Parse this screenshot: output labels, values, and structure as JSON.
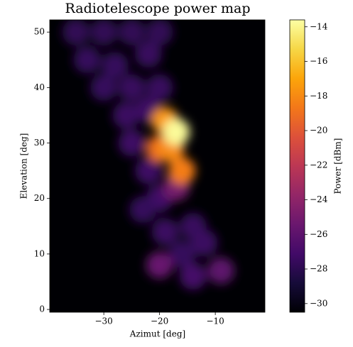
{
  "chart_data": {
    "type": "heatmap-blobs",
    "title": "Radiotelescope power map",
    "x_label": "Azimut [deg]",
    "y_label": "Elevation [deg]",
    "colorbar_label": "Power [dBm]",
    "colormap": "inferno",
    "x": [
      -35,
      -30,
      -25,
      -20,
      -33,
      -28,
      -22,
      -30,
      -25,
      -20,
      -26,
      -22,
      -25,
      -22,
      -20,
      -23,
      -14,
      -19,
      -16,
      -12,
      -14,
      -9,
      -20,
      -17,
      -16,
      -20,
      -18,
      -19,
      -17
    ],
    "y": [
      50,
      50,
      50,
      50,
      45,
      44,
      46,
      40,
      40,
      40,
      35,
      36,
      30,
      25,
      20,
      18,
      15,
      14,
      10,
      12,
      6,
      7,
      8,
      22,
      25,
      29,
      29,
      34,
      32
    ],
    "values": [
      -27.8,
      -27.8,
      -27.8,
      -27.8,
      -27.6,
      -27.6,
      -27.5,
      -27.6,
      -27.5,
      -27.5,
      -27.4,
      -27.3,
      -27.3,
      -27.3,
      -27.2,
      -27.6,
      -27.5,
      -27.4,
      -27.6,
      -27.4,
      -27,
      -26,
      -25.5,
      -25,
      -18.5,
      -19,
      -18,
      -17.5,
      -13.8
    ],
    "xlim": [
      -39.7,
      -1.1
    ],
    "ylim": [
      -0.5,
      52.2
    ],
    "clim": [
      -30.5,
      -13.6
    ],
    "xticks": [
      {
        "value": -30,
        "label": "−30"
      },
      {
        "value": -20,
        "label": "−20"
      },
      {
        "value": -10,
        "label": "−10"
      }
    ],
    "yticks": [
      0,
      10,
      20,
      30,
      40,
      50
    ],
    "cticks": [
      {
        "value": -30,
        "label": "−30"
      },
      {
        "value": -28,
        "label": "−28"
      },
      {
        "value": -26,
        "label": "−26"
      },
      {
        "value": -24,
        "label": "−24"
      },
      {
        "value": -22,
        "label": "−22"
      },
      {
        "value": -20,
        "label": "−20"
      },
      {
        "value": -18,
        "label": "−18"
      },
      {
        "value": -16,
        "label": "−16"
      },
      {
        "value": -14,
        "label": "−14"
      }
    ]
  }
}
